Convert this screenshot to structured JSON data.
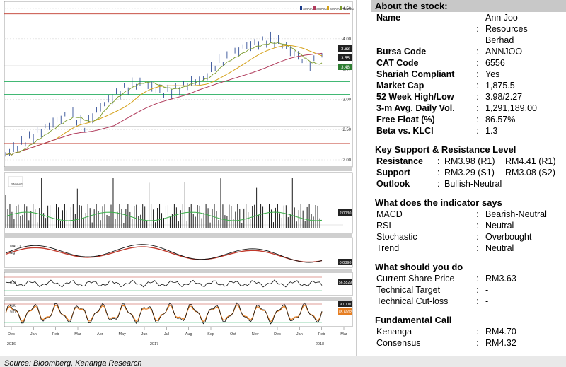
{
  "chart": {
    "legend_top": [
      "SMAVG",
      "SMAVG",
      "SMAVG",
      "SMAVG"
    ],
    "legend_vol": [
      "SMAVG"
    ],
    "panel_labels": {
      "macd": [
        "MACD",
        "Sig"
      ],
      "rsi": [
        "RSI"
      ],
      "stoch": [
        "%K",
        "%D"
      ]
    },
    "price_axis": [
      "4.50",
      "4.00",
      "3.50",
      "3.00",
      "2.50",
      "2.00"
    ],
    "price_tags": [
      "3.63",
      "3.55",
      "3.48"
    ],
    "vol_tag": "2.0030",
    "macd_tags": [
      "0.0890"
    ],
    "rsi_tags": [
      "56.5529"
    ],
    "stoch_tags": [
      "90.000",
      "85.6002"
    ],
    "x_months": [
      "Dec",
      "Jan",
      "Feb",
      "Mar",
      "Apr",
      "May",
      "Jun",
      "Jul",
      "Aug",
      "Sep",
      "Oct",
      "Nov",
      "Dec",
      "Jan",
      "Feb",
      "Mar"
    ],
    "x_years": [
      "2016",
      "2017",
      "2018"
    ]
  },
  "chart_data": {
    "type": "line",
    "title": "",
    "xlabel": "",
    "ylabel": "",
    "ylim": [
      2.0,
      4.5
    ],
    "series": [
      {
        "name": "",
        "values": [
          2.05,
          2.2,
          2.35,
          2.5,
          2.65,
          2.75,
          2.55,
          2.85,
          3.05,
          3.2,
          3.3,
          3.25,
          3.15,
          3.2,
          3.3,
          3.35,
          3.6,
          3.7,
          3.85,
          3.9,
          3.95,
          3.88,
          3.7,
          3.55,
          3.63
        ]
      }
    ],
    "grid": true,
    "legend": "top-right"
  },
  "source": "Source: Bloomberg, Kenanga Research",
  "about": {
    "heading": "About the stock:",
    "name_label": "Name",
    "name_lines": [
      "Ann Joo",
      "Resources",
      "Berhad"
    ],
    "rows": [
      {
        "k": "Bursa Code",
        "v": "ANNJOO"
      },
      {
        "k": "CAT Code",
        "v": "6556"
      },
      {
        "k": "Shariah Compliant",
        "v": "Yes"
      },
      {
        "k": "Market Cap",
        "v": "1,875.5"
      },
      {
        "k": "52 Week High/Low",
        "v": "3.98/2.27"
      },
      {
        "k": "3-m Avg. Daily Vol.",
        "v": "1,291,189.00"
      },
      {
        "k": "Free Float (%)",
        "v": "86.57%"
      },
      {
        "k": "Beta vs. KLCI",
        "v": "1.3"
      }
    ]
  },
  "sr": {
    "heading": "Key Support & Resistance Level",
    "resistance_label": "Resistance",
    "resistance_1": "RM3.98 (R1)",
    "resistance_2": "RM4.41 (R1)",
    "support_label": "Support",
    "support_1": "RM3.29 (S1)",
    "support_2": "RM3.08 (S2)",
    "outlook_label": "Outlook",
    "outlook_value": "Bullish-Neutral"
  },
  "indicators": {
    "heading": "What does the indicator says",
    "rows": [
      {
        "k": "MACD",
        "v": "Bearish-Neutral"
      },
      {
        "k": "RSI",
        "v": "Neutral"
      },
      {
        "k": "Stochastic",
        "v": "Overbought"
      },
      {
        "k": "Trend",
        "v": "Neutral"
      }
    ]
  },
  "todo": {
    "heading": "What should you do",
    "rows": [
      {
        "k": "Current Share Price",
        "v": "RM3.63"
      },
      {
        "k": "Technical Target",
        "v": "-"
      },
      {
        "k": "Technical Cut-loss",
        "v": "-"
      }
    ]
  },
  "fundamental": {
    "heading": "Fundamental Call",
    "rows": [
      {
        "k": "Kenanga",
        "v": "RM4.70"
      },
      {
        "k": "Consensus",
        "v": "RM4.32"
      }
    ]
  },
  "colon": ":"
}
